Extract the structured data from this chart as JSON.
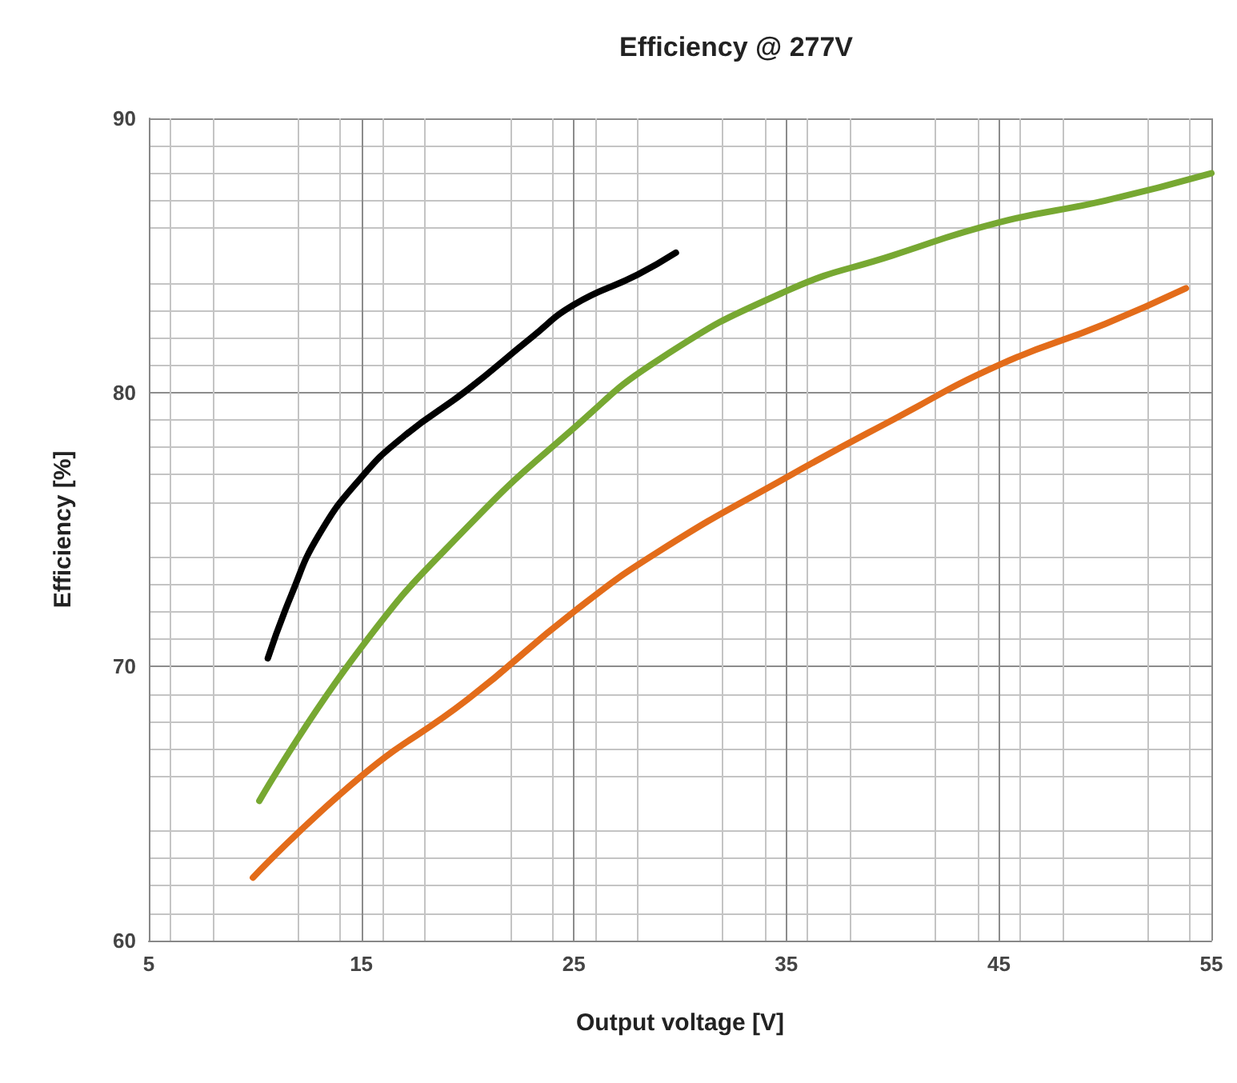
{
  "chart_data": {
    "type": "line",
    "title": "Efficiency @ 277V",
    "xlabel": "Output voltage [V]",
    "ylabel": "Efficiency [%]",
    "xlim": [
      5,
      55
    ],
    "xticks": [
      5,
      15,
      25,
      35,
      45,
      55
    ],
    "ylim": [
      60,
      90
    ],
    "yticks": [
      60,
      70,
      80,
      90
    ],
    "grid": true,
    "marker": "none",
    "line_style": "solid",
    "series": [
      {
        "color": "#000000",
        "x": [
          10.6,
          11.7,
          13,
          15,
          17,
          20,
          23,
          25,
          28,
          29.8
        ],
        "values": [
          70.3,
          72.6,
          74.8,
          76.9,
          78.4,
          80.1,
          82,
          83.2,
          84.3,
          85.1
        ]
      },
      {
        "color": "#77a832",
        "x": [
          10.2,
          15,
          20,
          25,
          29,
          35,
          40,
          45,
          50,
          55
        ],
        "values": [
          65.1,
          70.7,
          75.1,
          78.7,
          81.2,
          83.7,
          85,
          86.2,
          87,
          88
        ]
      },
      {
        "color": "#e36c1a",
        "x": [
          9.9,
          15,
          20,
          25,
          29,
          35,
          40,
          45,
          50,
          53.8
        ],
        "values": [
          62.3,
          66,
          68.8,
          72,
          74.2,
          76.9,
          79,
          81,
          82.5,
          83.8
        ]
      }
    ]
  }
}
